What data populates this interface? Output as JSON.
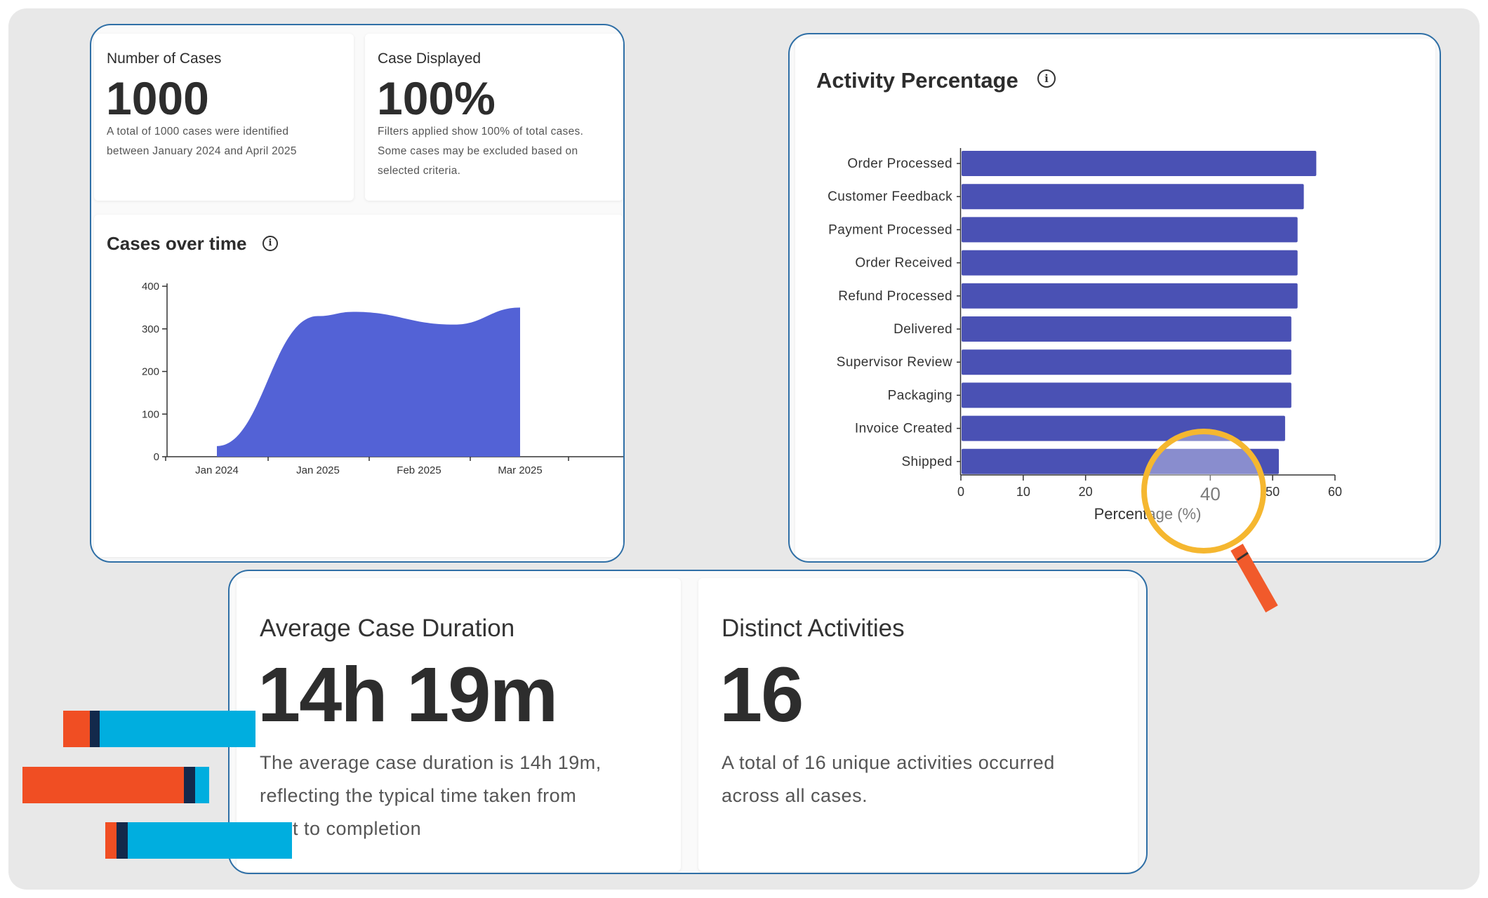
{
  "kpi_cases": {
    "label": "Number of Cases",
    "value": "1000",
    "desc_line1": "A total of 1000 cases were identified",
    "desc_line2": "between January 2024 and April 2025"
  },
  "kpi_displayed": {
    "label": "Case Displayed",
    "value": "100%",
    "desc_line1": "Filters applied show 100% of total cases.",
    "desc_line2": "Some cases may be excluded based on",
    "desc_line3": "selected criteria."
  },
  "cases_over_time": {
    "title": "Cases over time",
    "info_icon": "info-icon"
  },
  "activity_percentage": {
    "title": "Activity Percentage",
    "info_icon": "info-icon",
    "magnifier_icon": "magnifier-icon"
  },
  "avg_duration": {
    "label": "Average Case Duration",
    "value": "14h 19m",
    "desc_line1": "The average case duration is 14h 19m,",
    "desc_line2": "reflecting the typical time taken from",
    "desc_line3": "start to completion"
  },
  "distinct_activities": {
    "label": "Distinct Activities",
    "value": "16",
    "desc_line1": "A total of 16 unique activities occurred",
    "desc_line2": "across all cases."
  },
  "colors": {
    "area": "#5362d6",
    "bar": "#4a51b4",
    "panel_border": "#2f6fa6",
    "lens": "#f5b730",
    "handle": "#f15a2b",
    "deco_orange": "#f04e23",
    "deco_blue": "#00aedf",
    "deco_navy": "#13294b"
  },
  "chart_data": [
    {
      "type": "area",
      "title": "Cases over time",
      "categories": [
        "Jan 2024",
        "Jan 2025",
        "Feb 2025",
        "Mar 2025"
      ],
      "y_ticks": [
        "0",
        "100",
        "200",
        "300",
        "400"
      ],
      "ylim": [
        0,
        400
      ],
      "series": [
        {
          "points": [
            [
              0.0,
              25
            ],
            [
              1.0,
              330
            ],
            [
              1.35,
              340
            ],
            [
              2.35,
              310
            ],
            [
              3.0,
              350
            ]
          ]
        }
      ]
    },
    {
      "type": "bar",
      "orientation": "horizontal",
      "title": "Activity Percentage",
      "xlabel": "Percentage (%)",
      "x_ticks": [
        "0",
        "10",
        "20",
        "40",
        "50",
        "60"
      ],
      "x_tick_values": [
        0,
        10,
        20,
        40,
        50,
        60
      ],
      "xlim": [
        0,
        60
      ],
      "categories": [
        "Order Processed",
        "Customer Feedback",
        "Payment Processed",
        "Order Received",
        "Refund Processed",
        "Delivered",
        "Supervisor Review",
        "Packaging",
        "Invoice Created",
        "Shipped"
      ],
      "values": [
        57,
        55,
        54,
        54,
        54,
        53,
        53,
        53,
        52,
        51
      ]
    }
  ]
}
